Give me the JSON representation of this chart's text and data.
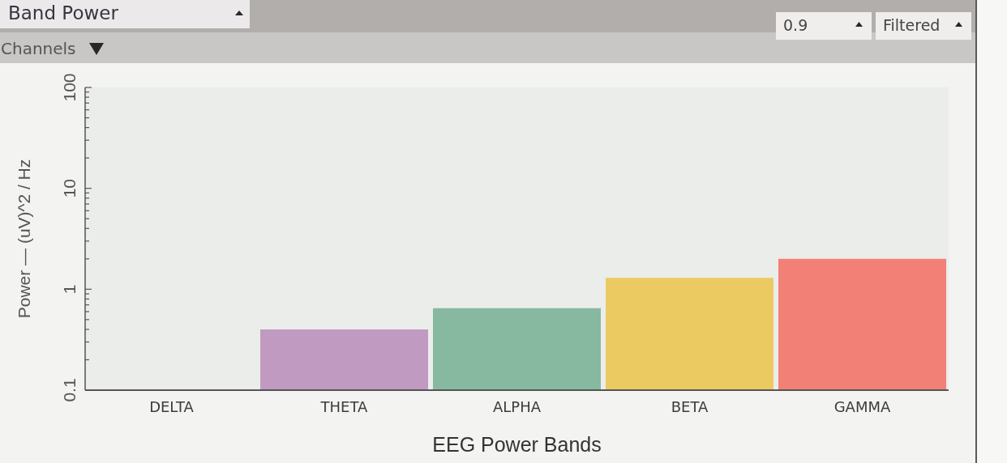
{
  "chart_data": {
    "type": "bar",
    "title": "Band Power",
    "xlabel": "EEG Power Bands",
    "ylabel": "Power — (uV)^2 / Hz",
    "categories": [
      "DELTA",
      "THETA",
      "ALPHA",
      "BETA",
      "GAMMA"
    ],
    "values": [
      null,
      0.4,
      0.65,
      1.3,
      2.0
    ],
    "colors": [
      null,
      "#c09ac0",
      "#86b9a0",
      "#ecca62",
      "#f28077"
    ],
    "log": true,
    "ylim": [
      0.1,
      100
    ],
    "yticks": [
      0.1,
      {
        "value": 0.2,
        "label": null
      },
      {
        "value": 0.3,
        "label": null
      },
      {
        "value": 0.4,
        "label": null
      },
      {
        "value": 0.5,
        "label": null
      },
      {
        "value": 0.6,
        "label": null
      },
      {
        "value": 0.7,
        "label": null
      },
      {
        "value": 0.8,
        "label": null
      },
      {
        "value": 0.9,
        "label": null
      },
      1,
      {
        "value": 2,
        "label": null
      },
      {
        "value": 3,
        "label": null
      },
      {
        "value": 4,
        "label": null
      },
      {
        "value": 5,
        "label": null
      },
      {
        "value": 6,
        "label": null
      },
      {
        "value": 7,
        "label": null
      },
      {
        "value": 8,
        "label": null
      },
      {
        "value": 9,
        "label": null
      },
      10,
      {
        "value": 20,
        "label": null
      },
      {
        "value": 30,
        "label": null
      },
      {
        "value": 40,
        "label": null
      },
      {
        "value": 50,
        "label": null
      },
      {
        "value": 60,
        "label": null
      },
      {
        "value": 70,
        "label": null
      },
      {
        "value": 80,
        "label": null
      },
      {
        "value": 90,
        "label": null
      },
      100
    ],
    "annotations": [
      "Channels",
      "0.9",
      "Filtered"
    ]
  }
}
